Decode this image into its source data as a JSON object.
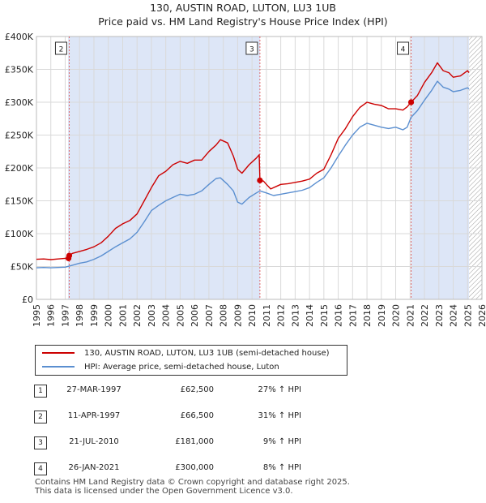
{
  "header": {
    "title_line1": "130, AUSTIN ROAD, LUTON, LU3 1UB",
    "title_line2": "Price paid vs. HM Land Registry's House Price Index (HPI)"
  },
  "colors": {
    "price_line": "#cc0000",
    "hpi_line": "#5b8fd0",
    "shade": "#dde6f7",
    "grid": "#d9d9d9",
    "sale_marker_line": "#e06666"
  },
  "chart_data": {
    "type": "line",
    "title": "Price paid vs. HM Land Registry's House Price Index (HPI)",
    "xlabel": "",
    "ylabel": "",
    "xlim": [
      1995,
      2026
    ],
    "ylim": [
      0,
      400000
    ],
    "x_ticks": [
      "1995",
      "1996",
      "1997",
      "1998",
      "1999",
      "2000",
      "2001",
      "2002",
      "2003",
      "2004",
      "2005",
      "2006",
      "2007",
      "2008",
      "2009",
      "2010",
      "2011",
      "2012",
      "2013",
      "2014",
      "2015",
      "2016",
      "2017",
      "2018",
      "2019",
      "2020",
      "2021",
      "2022",
      "2023",
      "2024",
      "2025",
      "2026"
    ],
    "y_ticks": [
      {
        "value": 0,
        "label": "£0"
      },
      {
        "value": 50000,
        "label": "£50K"
      },
      {
        "value": 100000,
        "label": "£100K"
      },
      {
        "value": 150000,
        "label": "£150K"
      },
      {
        "value": 200000,
        "label": "£200K"
      },
      {
        "value": 250000,
        "label": "£250K"
      },
      {
        "value": 300000,
        "label": "£300K"
      },
      {
        "value": 350000,
        "label": "£350K"
      },
      {
        "value": 400000,
        "label": "£400K"
      }
    ],
    "shaded_ranges": [
      [
        1997.2,
        2010.55
      ],
      [
        2021.07,
        2025.1
      ]
    ],
    "hatched_range": [
      2025.1,
      2026
    ],
    "series": [
      {
        "name": "130, AUSTIN ROAD, LUTON, LU3 1UB (semi-detached house)",
        "points": [
          [
            1995,
            61000
          ],
          [
            1995.5,
            61500
          ],
          [
            1996,
            60500
          ],
          [
            1996.5,
            61500
          ],
          [
            1997,
            62500
          ],
          [
            1997.23,
            62500
          ],
          [
            1997.28,
            66500
          ],
          [
            1997.5,
            70000
          ],
          [
            1998,
            73000
          ],
          [
            1998.5,
            76000
          ],
          [
            1999,
            80000
          ],
          [
            1999.5,
            86000
          ],
          [
            2000,
            96000
          ],
          [
            2000.5,
            108000
          ],
          [
            2001,
            115000
          ],
          [
            2001.5,
            120000
          ],
          [
            2002,
            130000
          ],
          [
            2002.5,
            150000
          ],
          [
            2003,
            170000
          ],
          [
            2003.5,
            188000
          ],
          [
            2004,
            195000
          ],
          [
            2004.5,
            205000
          ],
          [
            2005,
            210000
          ],
          [
            2005.5,
            207000
          ],
          [
            2006,
            212000
          ],
          [
            2006.5,
            212000
          ],
          [
            2007,
            225000
          ],
          [
            2007.5,
            235000
          ],
          [
            2007.8,
            243000
          ],
          [
            2008.3,
            238000
          ],
          [
            2008.7,
            218000
          ],
          [
            2009,
            198000
          ],
          [
            2009.3,
            192000
          ],
          [
            2009.8,
            205000
          ],
          [
            2010.3,
            215000
          ],
          [
            2010.5,
            220000
          ],
          [
            2010.55,
            181000
          ],
          [
            2010.8,
            180000
          ],
          [
            2011,
            175000
          ],
          [
            2011.3,
            168000
          ],
          [
            2011.7,
            172000
          ],
          [
            2012,
            175000
          ],
          [
            2012.5,
            176000
          ],
          [
            2013,
            178000
          ],
          [
            2013.5,
            180000
          ],
          [
            2014,
            183000
          ],
          [
            2014.5,
            192000
          ],
          [
            2015,
            198000
          ],
          [
            2015.5,
            220000
          ],
          [
            2016,
            245000
          ],
          [
            2016.5,
            260000
          ],
          [
            2017,
            278000
          ],
          [
            2017.5,
            292000
          ],
          [
            2018,
            300000
          ],
          [
            2018.5,
            297000
          ],
          [
            2019,
            295000
          ],
          [
            2019.5,
            290000
          ],
          [
            2020,
            290000
          ],
          [
            2020.5,
            288000
          ],
          [
            2020.8,
            293000
          ],
          [
            2021.07,
            300000
          ],
          [
            2021.5,
            310000
          ],
          [
            2022,
            330000
          ],
          [
            2022.5,
            345000
          ],
          [
            2022.9,
            360000
          ],
          [
            2023.3,
            348000
          ],
          [
            2023.7,
            345000
          ],
          [
            2024,
            338000
          ],
          [
            2024.5,
            340000
          ],
          [
            2025,
            348000
          ],
          [
            2025.1,
            345000
          ]
        ]
      },
      {
        "name": "HPI: Average price, semi-detached house, Luton",
        "points": [
          [
            1995,
            48000
          ],
          [
            1995.5,
            48500
          ],
          [
            1996,
            48000
          ],
          [
            1996.5,
            48500
          ],
          [
            1997,
            49000
          ],
          [
            1997.5,
            52000
          ],
          [
            1998,
            55000
          ],
          [
            1998.5,
            57000
          ],
          [
            1999,
            61000
          ],
          [
            1999.5,
            66000
          ],
          [
            2000,
            73000
          ],
          [
            2000.5,
            80000
          ],
          [
            2001,
            86000
          ],
          [
            2001.5,
            92000
          ],
          [
            2002,
            102000
          ],
          [
            2002.5,
            118000
          ],
          [
            2003,
            135000
          ],
          [
            2003.5,
            143000
          ],
          [
            2004,
            150000
          ],
          [
            2004.5,
            155000
          ],
          [
            2005,
            160000
          ],
          [
            2005.5,
            158000
          ],
          [
            2006,
            160000
          ],
          [
            2006.5,
            165000
          ],
          [
            2007,
            175000
          ],
          [
            2007.5,
            184000
          ],
          [
            2007.8,
            185000
          ],
          [
            2008.3,
            175000
          ],
          [
            2008.7,
            165000
          ],
          [
            2009,
            148000
          ],
          [
            2009.3,
            145000
          ],
          [
            2009.8,
            155000
          ],
          [
            2010.3,
            162000
          ],
          [
            2010.55,
            165000
          ],
          [
            2011,
            162000
          ],
          [
            2011.5,
            158000
          ],
          [
            2012,
            160000
          ],
          [
            2012.5,
            162000
          ],
          [
            2013,
            164000
          ],
          [
            2013.5,
            166000
          ],
          [
            2014,
            170000
          ],
          [
            2014.5,
            178000
          ],
          [
            2015,
            185000
          ],
          [
            2015.5,
            200000
          ],
          [
            2016,
            218000
          ],
          [
            2016.5,
            235000
          ],
          [
            2017,
            250000
          ],
          [
            2017.5,
            262000
          ],
          [
            2018,
            268000
          ],
          [
            2018.5,
            265000
          ],
          [
            2019,
            262000
          ],
          [
            2019.5,
            260000
          ],
          [
            2020,
            262000
          ],
          [
            2020.5,
            258000
          ],
          [
            2020.8,
            262000
          ],
          [
            2021.07,
            277000
          ],
          [
            2021.5,
            287000
          ],
          [
            2022,
            303000
          ],
          [
            2022.5,
            318000
          ],
          [
            2022.9,
            332000
          ],
          [
            2023.3,
            323000
          ],
          [
            2023.7,
            320000
          ],
          [
            2024,
            316000
          ],
          [
            2024.5,
            318000
          ],
          [
            2025,
            322000
          ],
          [
            2025.1,
            320000
          ]
        ]
      }
    ],
    "sales": [
      {
        "label": "1",
        "x": 1997.23,
        "price": 62500,
        "show_flag": false
      },
      {
        "label": "2",
        "x": 1997.28,
        "price": 66500,
        "show_flag": true
      },
      {
        "label": "3",
        "x": 2010.55,
        "price": 181000,
        "show_flag": true
      },
      {
        "label": "4",
        "x": 2021.07,
        "price": 300000,
        "show_flag": true
      }
    ]
  },
  "legend": {
    "price_label": "130, AUSTIN ROAD, LUTON, LU3 1UB (semi-detached house)",
    "hpi_label": "HPI: Average price, semi-detached house, Luton"
  },
  "transactions": [
    {
      "num": "1",
      "date": "27-MAR-1997",
      "price": "£62,500",
      "hpi": "27% ↑ HPI"
    },
    {
      "num": "2",
      "date": "11-APR-1997",
      "price": "£66,500",
      "hpi": "31% ↑ HPI"
    },
    {
      "num": "3",
      "date": "21-JUL-2010",
      "price": "£181,000",
      "hpi": "9% ↑ HPI"
    },
    {
      "num": "4",
      "date": "26-JAN-2021",
      "price": "£300,000",
      "hpi": "8% ↑ HPI"
    }
  ],
  "footer": {
    "line1": "Contains HM Land Registry data © Crown copyright and database right 2025.",
    "line2": "This data is licensed under the Open Government Licence v3.0."
  }
}
